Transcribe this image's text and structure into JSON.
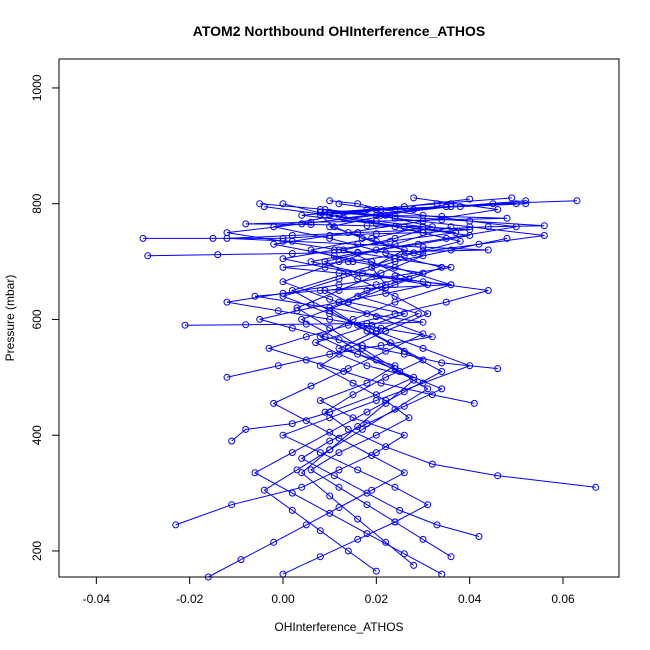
{
  "chart_data": {
    "type": "line",
    "title": "ATOM2 Northbound OHInterference_ATHOS",
    "xlabel": "OHInterference_ATHOS",
    "ylabel": "Pressure (mbar)",
    "xlim": [
      -0.048,
      0.072
    ],
    "ylim": [
      1050,
      155
    ],
    "y_reversed": true,
    "x_ticks": [
      -0.04,
      -0.02,
      0.0,
      0.02,
      0.04,
      0.06
    ],
    "x_tick_labels": [
      "-0.04",
      "-0.02",
      "0.00",
      "0.02",
      "0.04",
      "0.06"
    ],
    "y_ticks": [
      200,
      400,
      600,
      800,
      1000
    ],
    "y_tick_labels": [
      "200",
      "400",
      "600",
      "800",
      "1000"
    ],
    "grid": false,
    "legend": "none",
    "series_color": "#0000ff",
    "marker": "open-circle",
    "series": [
      {
        "x": [
          -0.023,
          -0.011,
          0.004,
          0.012,
          0.02,
          0.026,
          0.015,
          0.008,
          0.018,
          0.024,
          0.012,
          0.02,
          0.029,
          0.016,
          0.022,
          0.019,
          0.026,
          0.017,
          0.011,
          0.008,
          0.021,
          0.016,
          0.01
        ],
        "y": [
          245,
          280,
          310,
          340,
          370,
          400,
          430,
          460,
          490,
          520,
          550,
          580,
          610,
          640,
          660,
          690,
          720,
          740,
          760,
          780,
          790,
          800,
          805
        ]
      },
      {
        "x": [
          -0.011,
          -0.008,
          0.002,
          0.01,
          0.02,
          0.028,
          0.018,
          0.012,
          0.007,
          0.019,
          0.026,
          0.014,
          0.009,
          0.02,
          0.03,
          0.015,
          0.006,
          0.019,
          0.03,
          0.01,
          0.0
        ],
        "y": [
          390,
          410,
          420,
          440,
          470,
          500,
          520,
          540,
          560,
          590,
          610,
          630,
          650,
          660,
          680,
          700,
          720,
          740,
          760,
          780,
          800
        ]
      },
      {
        "x": [
          0.067,
          0.046,
          0.032,
          0.022,
          0.014,
          0.009,
          0.015,
          0.022,
          0.03,
          0.023,
          0.016,
          0.01,
          0.018,
          0.027,
          0.019,
          0.013,
          0.024,
          0.032,
          0.021,
          0.009,
          -0.005
        ],
        "y": [
          310,
          330,
          350,
          380,
          410,
          440,
          470,
          500,
          530,
          560,
          590,
          620,
          650,
          670,
          700,
          720,
          740,
          760,
          780,
          790,
          800
        ]
      },
      {
        "x": [
          0.036,
          0.03,
          0.024,
          0.018,
          0.012,
          0.006,
          0.012,
          0.02,
          0.027,
          0.022,
          0.015,
          0.008,
          0.014,
          0.022,
          0.031,
          0.024,
          0.016,
          0.009,
          0.02,
          0.035,
          0.05,
          0.03,
          0.012
        ],
        "y": [
          190,
          220,
          250,
          280,
          310,
          340,
          370,
          400,
          430,
          460,
          490,
          520,
          550,
          580,
          610,
          640,
          670,
          700,
          720,
          740,
          760,
          780,
          800
        ]
      },
      {
        "x": [
          0.042,
          0.033,
          0.025,
          0.018,
          0.011,
          0.004,
          0.01,
          0.018,
          0.026,
          0.034,
          0.025,
          0.016,
          0.008,
          0.015,
          0.024,
          0.036,
          0.024,
          0.011,
          -0.002,
          0.014,
          0.03,
          0.046,
          0.028
        ],
        "y": [
          225,
          245,
          270,
          300,
          330,
          360,
          390,
          420,
          450,
          480,
          510,
          540,
          570,
          600,
          630,
          660,
          690,
          710,
          730,
          750,
          770,
          790,
          810
        ]
      },
      {
        "x": [
          0.041,
          0.032,
          0.021,
          0.013,
          0.005,
          -0.003,
          0.005,
          0.014,
          0.024,
          0.035,
          0.044,
          0.03,
          0.017,
          0.006,
          0.016,
          0.029,
          0.04,
          0.026,
          0.013,
          0.028,
          0.045,
          0.063
        ],
        "y": [
          455,
          470,
          490,
          510,
          530,
          550,
          570,
          590,
          610,
          630,
          650,
          665,
          680,
          700,
          715,
          730,
          745,
          760,
          775,
          790,
          800,
          805
        ]
      },
      {
        "x": [
          0.046,
          0.034,
          0.026,
          0.017,
          0.009,
          0.002,
          -0.005,
          0.003,
          0.012,
          0.022,
          0.031,
          0.02,
          0.009,
          0.0,
          0.011,
          0.023,
          0.037,
          0.02,
          0.004,
          0.018,
          0.033,
          0.049
        ],
        "y": [
          515,
          525,
          540,
          555,
          570,
          585,
          600,
          615,
          630,
          645,
          660,
          675,
          690,
          705,
          720,
          735,
          750,
          765,
          780,
          790,
          800,
          810
        ]
      },
      {
        "x": [
          -0.03,
          -0.015,
          0.0,
          0.01,
          0.02,
          0.03,
          0.04,
          0.03,
          0.018,
          0.006,
          -0.008,
          0.006,
          0.02,
          0.034,
          0.048,
          0.034,
          0.02,
          0.008,
          0.02,
          0.035,
          0.05
        ],
        "y": [
          740,
          740,
          740,
          745,
          748,
          750,
          755,
          760,
          762,
          764,
          765,
          768,
          770,
          772,
          775,
          778,
          780,
          785,
          790,
          795,
          800
        ]
      },
      {
        "x": [
          -0.029,
          -0.014,
          0.002,
          0.016,
          0.03,
          0.044,
          0.03,
          0.016,
          0.002,
          -0.012,
          0.002,
          0.016,
          0.03,
          0.044,
          0.056,
          0.04,
          0.024,
          0.01,
          0.024,
          0.038,
          0.052
        ],
        "y": [
          710,
          712,
          714,
          716,
          718,
          720,
          725,
          730,
          735,
          740,
          745,
          750,
          755,
          760,
          762,
          770,
          778,
          785,
          790,
          795,
          800
        ]
      },
      {
        "x": [
          -0.021,
          -0.008,
          0.005,
          0.018,
          0.03,
          0.018,
          0.006,
          -0.006,
          0.008,
          0.022,
          0.036,
          0.024,
          0.012,
          0.0,
          0.014,
          0.028,
          0.042,
          0.056,
          0.04,
          0.024,
          0.008
        ],
        "y": [
          590,
          591,
          592,
          593,
          595,
          610,
          625,
          640,
          650,
          655,
          660,
          670,
          680,
          690,
          700,
          715,
          730,
          745,
          760,
          775,
          790
        ]
      },
      {
        "x": [
          0.0,
          0.008,
          0.016,
          0.024,
          0.031,
          0.024,
          0.016,
          0.008,
          0.0,
          0.01,
          0.02,
          0.03,
          0.04,
          0.03,
          0.02,
          0.01,
          0.0,
          0.012,
          0.024,
          0.036,
          0.048
        ],
        "y": [
          160,
          190,
          220,
          250,
          280,
          310,
          340,
          370,
          400,
          430,
          460,
          490,
          520,
          550,
          580,
          610,
          640,
          670,
          700,
          720,
          740
        ]
      },
      {
        "x": [
          0.02,
          0.014,
          0.008,
          0.002,
          -0.004,
          0.003,
          0.01,
          0.017,
          0.024,
          0.031,
          0.024,
          0.017,
          0.01,
          0.003,
          0.012,
          0.021,
          0.03,
          0.02,
          0.01,
          0.022,
          0.036
        ],
        "y": [
          165,
          200,
          235,
          270,
          305,
          340,
          375,
          410,
          445,
          480,
          515,
          550,
          585,
          620,
          650,
          680,
          710,
          735,
          760,
          780,
          800
        ]
      },
      {
        "x": [
          -0.016,
          -0.009,
          -0.002,
          0.005,
          0.012,
          0.019,
          0.026,
          0.019,
          0.012,
          0.005,
          -0.002,
          0.006,
          0.014,
          0.022,
          0.03,
          0.02,
          0.01,
          0.0,
          0.012,
          0.024,
          0.036
        ],
        "y": [
          155,
          185,
          215,
          245,
          275,
          305,
          335,
          365,
          395,
          425,
          455,
          485,
          515,
          545,
          575,
          605,
          635,
          665,
          700,
          730,
          760
        ]
      },
      {
        "x": [
          0.034,
          0.026,
          0.018,
          0.01,
          0.002,
          -0.006,
          0.002,
          0.01,
          0.018,
          0.026,
          0.034,
          0.026,
          0.018,
          0.01,
          0.002,
          0.014,
          0.026,
          0.038,
          0.024,
          0.01,
          -0.004
        ],
        "y": [
          160,
          195,
          230,
          265,
          300,
          335,
          370,
          405,
          440,
          475,
          510,
          545,
          580,
          615,
          650,
          680,
          710,
          735,
          760,
          780,
          795
        ]
      },
      {
        "x": [
          -0.012,
          -0.001,
          0.01,
          0.021,
          0.032,
          0.021,
          0.01,
          -0.001,
          -0.012,
          0.0,
          0.012,
          0.024,
          0.036,
          0.024,
          0.012,
          0.0,
          -0.012,
          0.004,
          0.02,
          0.036,
          0.052
        ],
        "y": [
          500,
          520,
          540,
          555,
          570,
          585,
          600,
          615,
          630,
          645,
          660,
          675,
          690,
          705,
          720,
          735,
          750,
          765,
          780,
          795,
          805
        ]
      },
      {
        "x": [
          0.028,
          0.022,
          0.016,
          0.01,
          0.004,
          0.01,
          0.016,
          0.022,
          0.028,
          0.02,
          0.012,
          0.004,
          0.014,
          0.024,
          0.034,
          0.022,
          0.01,
          -0.002,
          0.012,
          0.026,
          0.04
        ],
        "y": [
          175,
          215,
          255,
          295,
          335,
          375,
          415,
          455,
          495,
          530,
          565,
          600,
          630,
          660,
          690,
          715,
          740,
          760,
          780,
          795,
          808
        ]
      }
    ]
  }
}
